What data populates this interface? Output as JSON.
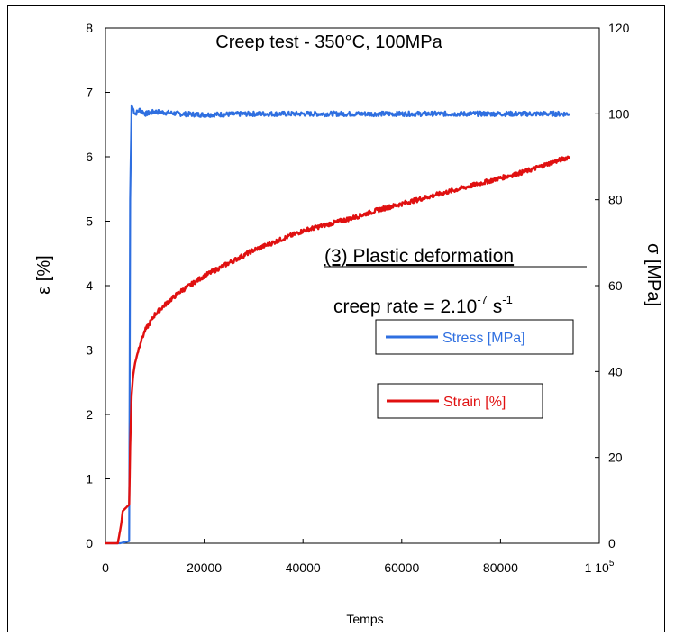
{
  "chart_data": {
    "type": "line",
    "title": "Creep test - 350°C, 100MPa",
    "xlabel": "Temps",
    "y1label": "ε [%]",
    "y2label": "σ [MPa]",
    "xlim": [
      0,
      100000
    ],
    "y1lim": [
      0,
      8
    ],
    "y2lim": [
      0,
      120
    ],
    "x_ticks": [
      "0",
      "20000",
      "40000",
      "60000",
      "80000",
      "1 10"
    ],
    "x_tick_last_exponent": "5",
    "y1_ticks": [
      "0",
      "1",
      "2",
      "3",
      "4",
      "5",
      "6",
      "7",
      "8"
    ],
    "y2_ticks": [
      "0",
      "20",
      "40",
      "60",
      "80",
      "100",
      "120"
    ],
    "grid": false,
    "legend_position": "right-middle",
    "annotations": {
      "phase_label": "(3) Plastic deformation",
      "rate_prefix": "creep rate = 2.10",
      "rate_exponent": "-7",
      "rate_unit": " s",
      "rate_unit_exponent": "-1"
    },
    "series": [
      {
        "name": "Stress [MPa]",
        "axis": "right",
        "color": "#2f6fe0",
        "x": [
          0,
          3000,
          4800,
          5000,
          5300,
          6000,
          7000,
          8000,
          10000,
          15000,
          20000,
          30000,
          40000,
          50000,
          60000,
          70000,
          80000,
          90000,
          94000
        ],
        "y": [
          0,
          0,
          0.5,
          80,
          102,
          100,
          101,
          100,
          100.5,
          100,
          99.8,
          100,
          100,
          100,
          100,
          100,
          100,
          100,
          100
        ]
      },
      {
        "name": "Strain [%]",
        "axis": "left",
        "color": "#e01010",
        "x": [
          0,
          2500,
          3200,
          3500,
          4800,
          5000,
          5300,
          5600,
          6000,
          7000,
          8000,
          10000,
          12000,
          15000,
          20000,
          25000,
          30000,
          35000,
          40000,
          45000,
          50000,
          55000,
          60000,
          65000,
          70000,
          75000,
          80000,
          85000,
          90000,
          94000
        ],
        "y": [
          0,
          0,
          0.3,
          0.5,
          0.6,
          1.5,
          2.3,
          2.6,
          2.8,
          3.1,
          3.3,
          3.55,
          3.7,
          3.9,
          4.15,
          4.35,
          4.55,
          4.7,
          4.85,
          4.95,
          5.05,
          5.17,
          5.27,
          5.37,
          5.47,
          5.57,
          5.67,
          5.77,
          5.9,
          6.0
        ]
      }
    ]
  }
}
